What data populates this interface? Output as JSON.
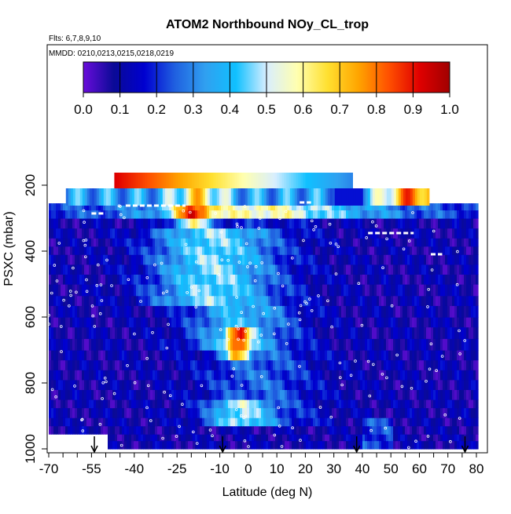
{
  "chart_data": {
    "type": "heatmap",
    "title": "ATOM2 Northbound NOy_CL_trop",
    "flights_label": "Flts: 6,7,8,9,10",
    "dates_label": "MMDD: 0210,0213,0215,0218,0219",
    "xlabel": "Latitude (deg N)",
    "ylabel": "PSXC (mbar)",
    "xlim": [
      -70,
      80
    ],
    "ylim": [
      1000,
      90
    ],
    "x_ticks": [
      -70,
      -55,
      -40,
      -25,
      -10,
      0,
      10,
      20,
      30,
      40,
      50,
      60,
      70,
      80
    ],
    "x_tick_labels": [
      "-70",
      "-55",
      "-40",
      "-25",
      "-10",
      "0",
      "10",
      "20",
      "30",
      "40",
      "50",
      "60",
      "70",
      "80"
    ],
    "x_minor_step": 5,
    "y_ticks": [
      200,
      400,
      600,
      800,
      1000
    ],
    "y_tick_labels": [
      "200",
      "400",
      "600",
      "800",
      "1000"
    ],
    "colorbar": {
      "min": 0.0,
      "max": 1.0,
      "ticks": [
        "0.0",
        "0.1",
        "0.2",
        "0.3",
        "0.4",
        "0.5",
        "0.6",
        "0.7",
        "0.8",
        "0.9",
        "1.0"
      ],
      "colors": [
        "#6a0ddb",
        "#0a0a96",
        "#0000d0",
        "#2060e0",
        "#30a0f0",
        "#10c0ff",
        "#d8eeff",
        "#ffffb0",
        "#ffe030",
        "#ffa500",
        "#ff5000",
        "#e00000",
        "#a00000"
      ]
    },
    "profile_arrows_lat": [
      -54,
      -9,
      38,
      76
    ],
    "grid": false,
    "legend": "colorbar-top"
  },
  "colors": {
    "background": "#ffffff",
    "axis": "#000000",
    "marker": "#ffffff"
  }
}
